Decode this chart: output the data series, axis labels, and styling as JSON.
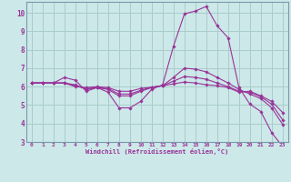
{
  "xlabel": "Windchill (Refroidissement éolien,°C)",
  "background_color": "#cce8e8",
  "grid_color": "#aacccc",
  "line_color": "#993399",
  "x_range": [
    -0.5,
    23.5
  ],
  "y_range": [
    3,
    10.6
  ],
  "yticks": [
    3,
    4,
    5,
    6,
    7,
    8,
    9,
    10
  ],
  "xticks": [
    0,
    1,
    2,
    3,
    4,
    5,
    6,
    7,
    8,
    9,
    10,
    11,
    12,
    13,
    14,
    15,
    16,
    17,
    18,
    19,
    20,
    21,
    22,
    23
  ],
  "lines": [
    {
      "x": [
        0,
        1,
        2,
        3,
        4,
        5,
        6,
        7,
        8,
        9,
        10,
        11,
        12,
        13,
        14,
        15,
        16,
        17,
        18,
        19,
        20,
        21,
        22,
        23
      ],
      "y": [
        6.2,
        6.2,
        6.2,
        6.5,
        6.35,
        5.75,
        5.95,
        5.7,
        4.85,
        4.85,
        5.2,
        5.85,
        6.1,
        8.2,
        9.95,
        10.1,
        10.35,
        9.3,
        8.65,
        5.95,
        5.05,
        4.65,
        3.5,
        2.75
      ]
    },
    {
      "x": [
        0,
        1,
        2,
        3,
        4,
        5,
        6,
        7,
        8,
        9,
        10,
        11,
        12,
        13,
        14,
        15,
        16,
        17,
        18,
        19,
        20,
        21,
        22,
        23
      ],
      "y": [
        6.2,
        6.2,
        6.2,
        6.2,
        6.1,
        5.85,
        5.95,
        5.85,
        5.5,
        5.5,
        5.75,
        5.95,
        6.05,
        6.5,
        7.0,
        6.95,
        6.8,
        6.5,
        6.2,
        5.85,
        5.6,
        5.35,
        4.85,
        3.95
      ]
    },
    {
      "x": [
        0,
        1,
        2,
        3,
        4,
        5,
        6,
        7,
        8,
        9,
        10,
        11,
        12,
        13,
        14,
        15,
        16,
        17,
        18,
        19,
        20,
        21,
        22,
        23
      ],
      "y": [
        6.2,
        6.2,
        6.2,
        6.2,
        6.05,
        5.9,
        5.95,
        5.9,
        5.6,
        5.6,
        5.8,
        5.97,
        6.05,
        6.3,
        6.55,
        6.5,
        6.4,
        6.2,
        6.0,
        5.75,
        5.7,
        5.45,
        5.05,
        4.2
      ]
    },
    {
      "x": [
        0,
        1,
        2,
        3,
        4,
        5,
        6,
        7,
        8,
        9,
        10,
        11,
        12,
        13,
        14,
        15,
        16,
        17,
        18,
        19,
        20,
        21,
        22,
        23
      ],
      "y": [
        6.2,
        6.2,
        6.2,
        6.2,
        6.0,
        5.95,
        6.0,
        5.95,
        5.75,
        5.75,
        5.9,
        5.97,
        6.05,
        6.15,
        6.25,
        6.2,
        6.1,
        6.05,
        5.95,
        5.7,
        5.75,
        5.5,
        5.2,
        4.6
      ]
    }
  ]
}
